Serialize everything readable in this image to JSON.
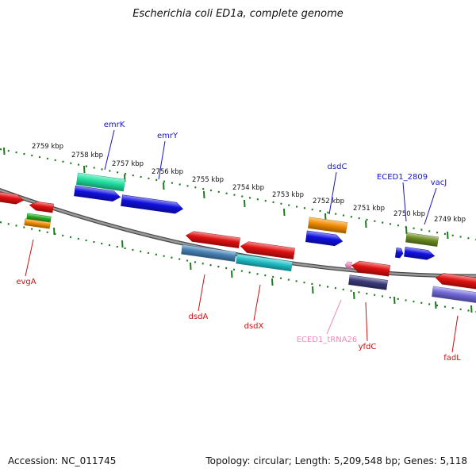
{
  "title": "Escherichia coli ED1a, complete genome",
  "footer": {
    "accession": "Accession: NC_011745",
    "topology": "Topology: circular; Length: 5,209,548 bp; Genes: 5,118"
  },
  "ticks": [
    "2759 kbp",
    "2758 kbp",
    "2757 kbp",
    "2756 kbp",
    "2755 kbp",
    "2754 kbp",
    "2753 kbp",
    "2752 kbp",
    "2751 kbp",
    "2750 kbp",
    "2749 kbp"
  ],
  "genes_top": [
    "emrK",
    "emrY",
    "dsdC",
    "ECED1_2809",
    "vacJ"
  ],
  "genes_bottom": [
    "evgA",
    "dsdA",
    "dsdX",
    "ECED1_tRNA26",
    "yfdC",
    "fadL"
  ],
  "colors": {
    "top_label": "#1414c8",
    "bottom_label": "#cc1111",
    "trna_label": "#ee88bb",
    "backbone": "#888888",
    "tick": "#1e7a1e",
    "red": "#e01010",
    "blue": "#1010e0",
    "teal": "#20e0a0",
    "orange": "#f08c00",
    "olive": "#6a8a20",
    "steel": "#4682b4",
    "cyan": "#20c0c8",
    "indigo": "#3a3a7a",
    "slate": "#7068d8",
    "green": "#20b020",
    "pink": "#f090c0"
  }
}
